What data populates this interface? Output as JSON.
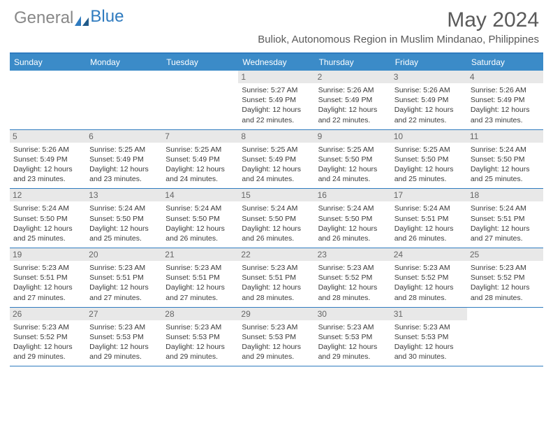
{
  "logo": {
    "text1": "General",
    "text2": "Blue"
  },
  "title": "May 2024",
  "location": "Buliok, Autonomous Region in Muslim Mindanao, Philippines",
  "weekdays": [
    "Sunday",
    "Monday",
    "Tuesday",
    "Wednesday",
    "Thursday",
    "Friday",
    "Saturday"
  ],
  "colors": {
    "header_bar": "#3b8bc8",
    "border": "#2f7bbf",
    "daynum_bg": "#e8e8e8",
    "text": "#3a3a3a",
    "logo_gray": "#888888",
    "logo_blue": "#2f7bbf"
  },
  "weeks": [
    [
      null,
      null,
      null,
      {
        "n": "1",
        "sr": "5:27 AM",
        "ss": "5:49 PM",
        "dl": "12 hours and 22 minutes."
      },
      {
        "n": "2",
        "sr": "5:26 AM",
        "ss": "5:49 PM",
        "dl": "12 hours and 22 minutes."
      },
      {
        "n": "3",
        "sr": "5:26 AM",
        "ss": "5:49 PM",
        "dl": "12 hours and 22 minutes."
      },
      {
        "n": "4",
        "sr": "5:26 AM",
        "ss": "5:49 PM",
        "dl": "12 hours and 23 minutes."
      }
    ],
    [
      {
        "n": "5",
        "sr": "5:26 AM",
        "ss": "5:49 PM",
        "dl": "12 hours and 23 minutes."
      },
      {
        "n": "6",
        "sr": "5:25 AM",
        "ss": "5:49 PM",
        "dl": "12 hours and 23 minutes."
      },
      {
        "n": "7",
        "sr": "5:25 AM",
        "ss": "5:49 PM",
        "dl": "12 hours and 24 minutes."
      },
      {
        "n": "8",
        "sr": "5:25 AM",
        "ss": "5:49 PM",
        "dl": "12 hours and 24 minutes."
      },
      {
        "n": "9",
        "sr": "5:25 AM",
        "ss": "5:50 PM",
        "dl": "12 hours and 24 minutes."
      },
      {
        "n": "10",
        "sr": "5:25 AM",
        "ss": "5:50 PM",
        "dl": "12 hours and 25 minutes."
      },
      {
        "n": "11",
        "sr": "5:24 AM",
        "ss": "5:50 PM",
        "dl": "12 hours and 25 minutes."
      }
    ],
    [
      {
        "n": "12",
        "sr": "5:24 AM",
        "ss": "5:50 PM",
        "dl": "12 hours and 25 minutes."
      },
      {
        "n": "13",
        "sr": "5:24 AM",
        "ss": "5:50 PM",
        "dl": "12 hours and 25 minutes."
      },
      {
        "n": "14",
        "sr": "5:24 AM",
        "ss": "5:50 PM",
        "dl": "12 hours and 26 minutes."
      },
      {
        "n": "15",
        "sr": "5:24 AM",
        "ss": "5:50 PM",
        "dl": "12 hours and 26 minutes."
      },
      {
        "n": "16",
        "sr": "5:24 AM",
        "ss": "5:50 PM",
        "dl": "12 hours and 26 minutes."
      },
      {
        "n": "17",
        "sr": "5:24 AM",
        "ss": "5:51 PM",
        "dl": "12 hours and 26 minutes."
      },
      {
        "n": "18",
        "sr": "5:24 AM",
        "ss": "5:51 PM",
        "dl": "12 hours and 27 minutes."
      }
    ],
    [
      {
        "n": "19",
        "sr": "5:23 AM",
        "ss": "5:51 PM",
        "dl": "12 hours and 27 minutes."
      },
      {
        "n": "20",
        "sr": "5:23 AM",
        "ss": "5:51 PM",
        "dl": "12 hours and 27 minutes."
      },
      {
        "n": "21",
        "sr": "5:23 AM",
        "ss": "5:51 PM",
        "dl": "12 hours and 27 minutes."
      },
      {
        "n": "22",
        "sr": "5:23 AM",
        "ss": "5:51 PM",
        "dl": "12 hours and 28 minutes."
      },
      {
        "n": "23",
        "sr": "5:23 AM",
        "ss": "5:52 PM",
        "dl": "12 hours and 28 minutes."
      },
      {
        "n": "24",
        "sr": "5:23 AM",
        "ss": "5:52 PM",
        "dl": "12 hours and 28 minutes."
      },
      {
        "n": "25",
        "sr": "5:23 AM",
        "ss": "5:52 PM",
        "dl": "12 hours and 28 minutes."
      }
    ],
    [
      {
        "n": "26",
        "sr": "5:23 AM",
        "ss": "5:52 PM",
        "dl": "12 hours and 29 minutes."
      },
      {
        "n": "27",
        "sr": "5:23 AM",
        "ss": "5:53 PM",
        "dl": "12 hours and 29 minutes."
      },
      {
        "n": "28",
        "sr": "5:23 AM",
        "ss": "5:53 PM",
        "dl": "12 hours and 29 minutes."
      },
      {
        "n": "29",
        "sr": "5:23 AM",
        "ss": "5:53 PM",
        "dl": "12 hours and 29 minutes."
      },
      {
        "n": "30",
        "sr": "5:23 AM",
        "ss": "5:53 PM",
        "dl": "12 hours and 29 minutes."
      },
      {
        "n": "31",
        "sr": "5:23 AM",
        "ss": "5:53 PM",
        "dl": "12 hours and 30 minutes."
      },
      null
    ]
  ]
}
